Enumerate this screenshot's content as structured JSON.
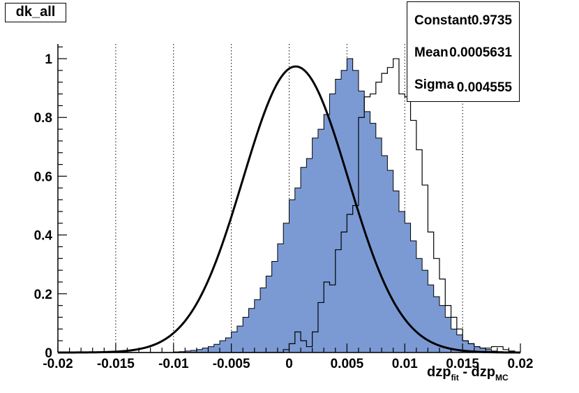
{
  "chart_data": {
    "type": "histogram",
    "title": "dk_all",
    "xlabel": {
      "base1": "dzp",
      "sub1": "fit",
      "sep": " - ",
      "base2": "dzp",
      "sub2": "MC"
    },
    "ylabel": "",
    "xlim": [
      -0.02,
      0.02
    ],
    "ylim": [
      0,
      1.05
    ],
    "x_ticks": [
      -0.02,
      -0.015,
      -0.01,
      -0.005,
      0,
      0.005,
      0.01,
      0.015,
      0.02
    ],
    "x_tick_labels": [
      "-0.02",
      "-0.015",
      "-0.01",
      "-0.005",
      "0",
      "0.005",
      "0.01",
      "0.015",
      "0.02"
    ],
    "y_ticks": [
      0,
      0.2,
      0.4,
      0.6,
      0.8,
      1
    ],
    "y_tick_labels": [
      "0",
      "0.2",
      "0.4",
      "0.6",
      "0.8",
      "1"
    ],
    "x_grid": true,
    "y_grid": false,
    "bin_edges_start": -0.02,
    "bin_width": 0.0005,
    "series": [
      {
        "style": "filled",
        "color": "#7b9ad4",
        "values": [
          0,
          0,
          0,
          0,
          0,
          0,
          0,
          0,
          0,
          0,
          0,
          0,
          0,
          0,
          0,
          0,
          0,
          0,
          0,
          0,
          0.002,
          0.003,
          0.005,
          0.007,
          0.01,
          0.015,
          0.02,
          0.028,
          0.04,
          0.05,
          0.07,
          0.09,
          0.12,
          0.15,
          0.18,
          0.22,
          0.26,
          0.31,
          0.37,
          0.44,
          0.52,
          0.56,
          0.63,
          0.66,
          0.73,
          0.76,
          0.81,
          0.88,
          0.93,
          0.96,
          1.0,
          0.96,
          0.89,
          0.82,
          0.78,
          0.73,
          0.67,
          0.62,
          0.55,
          0.48,
          0.44,
          0.38,
          0.32,
          0.28,
          0.23,
          0.19,
          0.16,
          0.12,
          0.08,
          0.06,
          0.04,
          0.03,
          0.02,
          0.015,
          0.01,
          0.005,
          0.003,
          0.002,
          0.001,
          0
        ]
      },
      {
        "style": "outline",
        "color": "#000000",
        "values": [
          0,
          0,
          0,
          0,
          0,
          0,
          0,
          0,
          0,
          0,
          0,
          0,
          0,
          0,
          0,
          0,
          0,
          0,
          0,
          0,
          0,
          0,
          0,
          0,
          0,
          0,
          0,
          0,
          0,
          0,
          0,
          0,
          0,
          0,
          0,
          0,
          0,
          0,
          0,
          0.01,
          0.03,
          0.07,
          0.04,
          0.02,
          0.07,
          0.17,
          0.24,
          0.23,
          0.35,
          0.41,
          0.47,
          0.5,
          0.8,
          0.87,
          0.88,
          0.92,
          0.95,
          0.97,
          1.0,
          0.88,
          0.87,
          0.79,
          0.69,
          0.57,
          0.41,
          0.32,
          0.25,
          0.16,
          0.12,
          0.08,
          0.04,
          0.03,
          0.02,
          0.015,
          0.015,
          0.02,
          0.02,
          0.01,
          0.005,
          0
        ]
      }
    ],
    "fit": {
      "type": "gaussian",
      "color": "#000000",
      "constant": 0.9735,
      "mean": 0.0005631,
      "sigma": 0.004555
    },
    "stats": [
      {
        "key": "Constant",
        "value": "0.9735"
      },
      {
        "key": "Mean",
        "value": "0.0005631"
      },
      {
        "key": "Sigma",
        "value": "0.004555"
      }
    ]
  }
}
